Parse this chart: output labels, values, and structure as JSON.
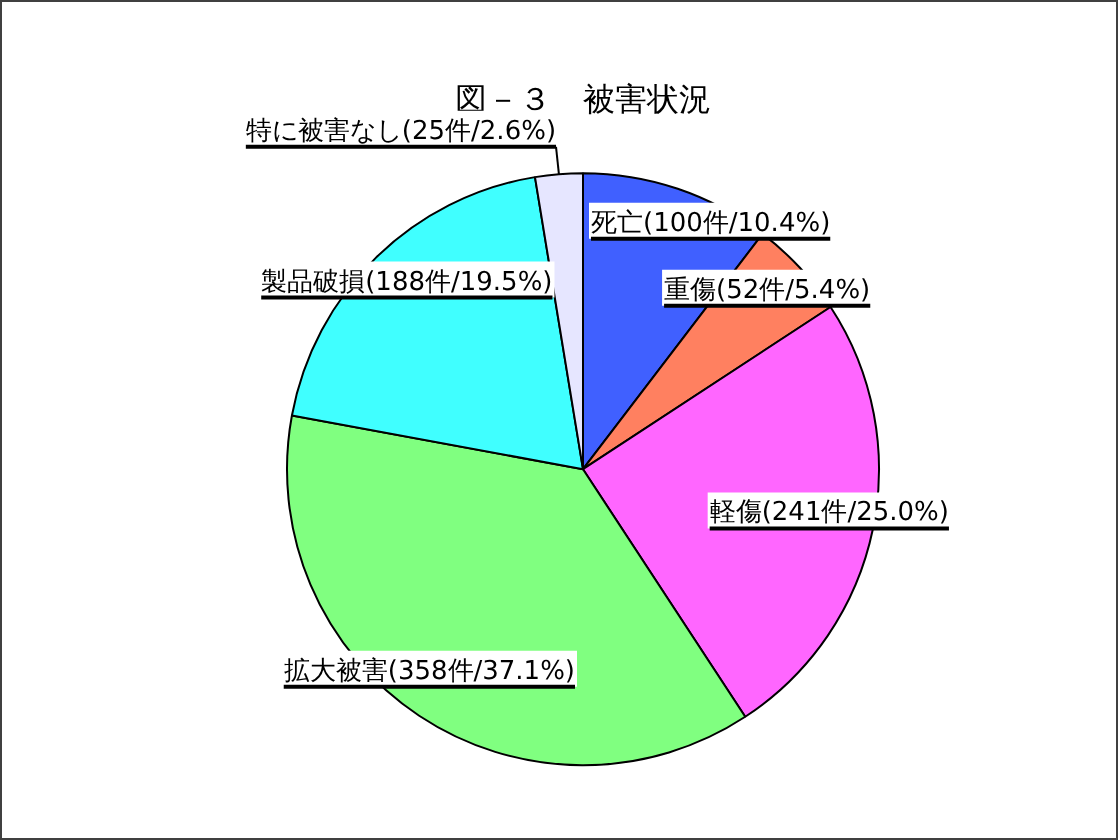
{
  "chart_data": {
    "type": "pie",
    "title": "図－３　被害状況",
    "categories": [
      "死亡",
      "重傷",
      "軽傷",
      "拡大被害",
      "製品破損",
      "特に被害なし"
    ],
    "values": [
      100,
      52,
      241,
      358,
      188,
      25
    ],
    "value_labels": [
      "(100件/10.4%)",
      "(52件/5.4%)",
      "(241件/25.0%)",
      "(358件/37.1%)",
      "(188件/19.5%)",
      "(25件/2.6%)"
    ],
    "colors": [
      "#4060ff",
      "#ff8060",
      "#ff66ff",
      "#80ff80",
      "#40ffff",
      "#e6e6ff"
    ]
  }
}
